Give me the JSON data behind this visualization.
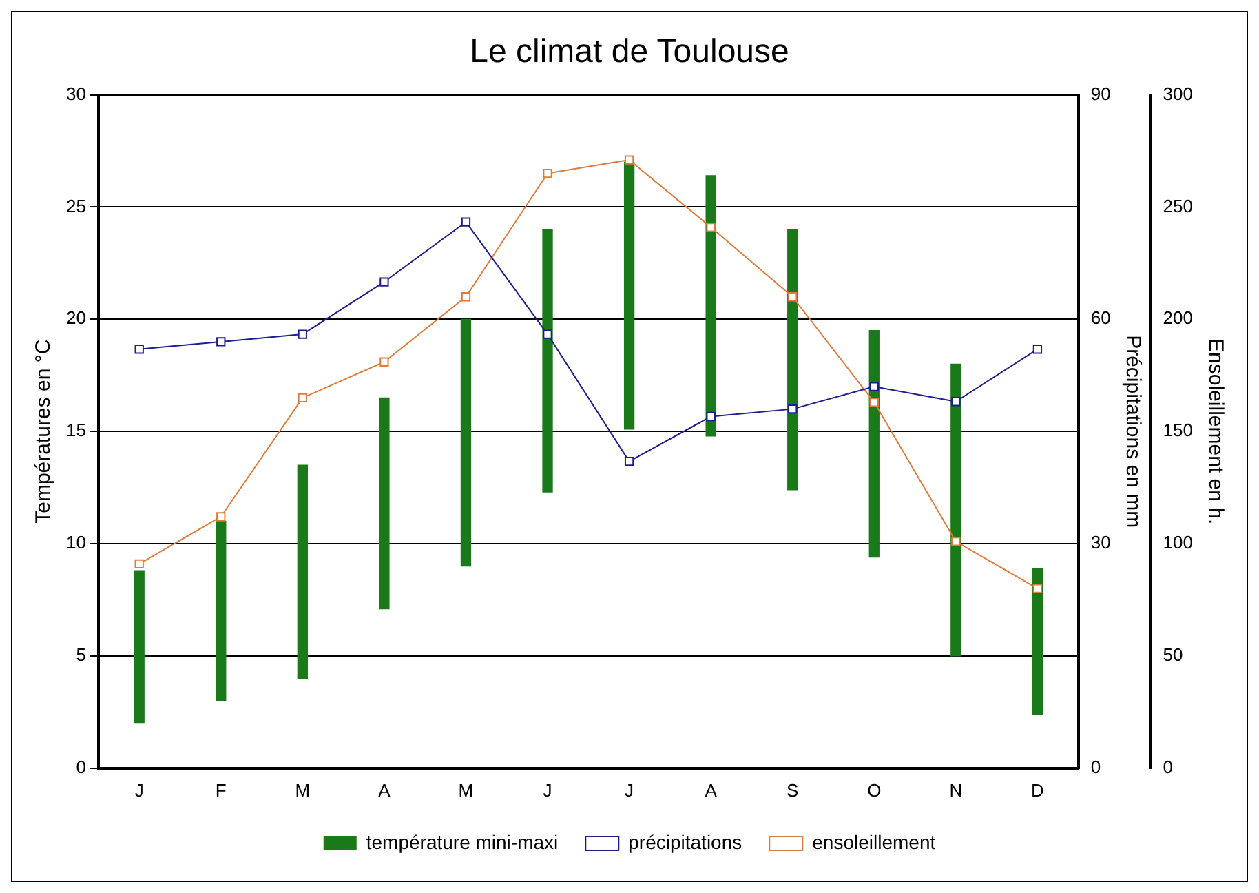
{
  "chart_data": {
    "type": "bar",
    "title": "Le climat de Toulouse",
    "ylabel": "Températures en °C",
    "y2label": "Précipitations en mm",
    "y3label": "Ensoleillement en h.",
    "categories": [
      "J",
      "F",
      "M",
      "A",
      "M",
      "J",
      "J",
      "A",
      "S",
      "O",
      "N",
      "D"
    ],
    "series": [
      {
        "name": "température mini-maxi",
        "color": "#1a7a1a",
        "base": [
          2,
          3,
          4,
          7.1,
          9,
          12.3,
          15.1,
          14.8,
          12.4,
          9.4,
          5,
          2.4
        ],
        "values": [
          6.8,
          8,
          9.5,
          9.4,
          11,
          11.7,
          11.9,
          11.6,
          11.6,
          10.1,
          13,
          6.5
        ]
      },
      {
        "name": "précipitations",
        "type": "line",
        "axis": "y2",
        "color": "#1c1c8c",
        "marker": "square",
        "values": [
          56,
          57,
          58,
          65,
          73,
          58,
          41,
          47,
          48,
          51,
          49,
          56
        ]
      },
      {
        "name": "ensoleillement",
        "type": "line",
        "axis": "y3",
        "color": "#e07b39",
        "marker": "square",
        "values": [
          91,
          112,
          165,
          181,
          210,
          265,
          271,
          241,
          210,
          163,
          101,
          80
        ]
      }
    ],
    "ylim": [
      0,
      30
    ],
    "yticks": [
      0,
      5,
      10,
      15,
      20,
      25,
      30
    ],
    "y2lim": [
      0,
      90
    ],
    "y2ticks": [
      0,
      30,
      60,
      90
    ],
    "y3lim": [
      0,
      300
    ],
    "y3ticks": [
      0,
      50,
      100,
      150,
      200,
      250,
      300
    ],
    "grid": "y",
    "legend": "bottom"
  }
}
